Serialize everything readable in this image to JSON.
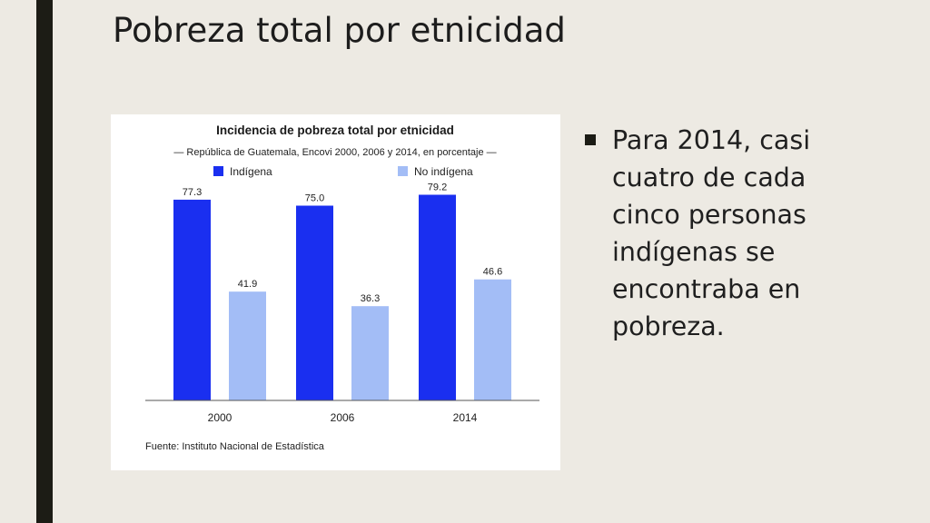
{
  "slide": {
    "title": "Pobreza total por etnicidad",
    "bullet": "Para 2014, casi cuatro de cada cinco personas indígenas se encontraba en pobreza.",
    "bullet_marker": "■"
  },
  "chart_data": {
    "type": "bar",
    "title": "Incidencia de pobreza total por etnicidad",
    "subtitle": "— República de Guatemala, Encovi 2000, 2006 y 2014, en porcentaje —",
    "categories": [
      "2000",
      "2006",
      "2014"
    ],
    "series": [
      {
        "name": "Indígena",
        "values": [
          77.3,
          75.0,
          79.2
        ],
        "color": "#1a2ff0"
      },
      {
        "name": "No indígena",
        "values": [
          41.9,
          36.3,
          46.6
        ],
        "color": "#a3bdf6"
      }
    ],
    "value_labels": [
      [
        "77.3",
        "75.0",
        "79.2"
      ],
      [
        "41.9",
        "36.3",
        "46.6"
      ]
    ],
    "xlabel": "",
    "ylabel": "",
    "ylim": [
      0,
      100
    ],
    "grid": false,
    "legend_position": "top",
    "source": "Fuente: Instituto Nacional de Estadística"
  }
}
